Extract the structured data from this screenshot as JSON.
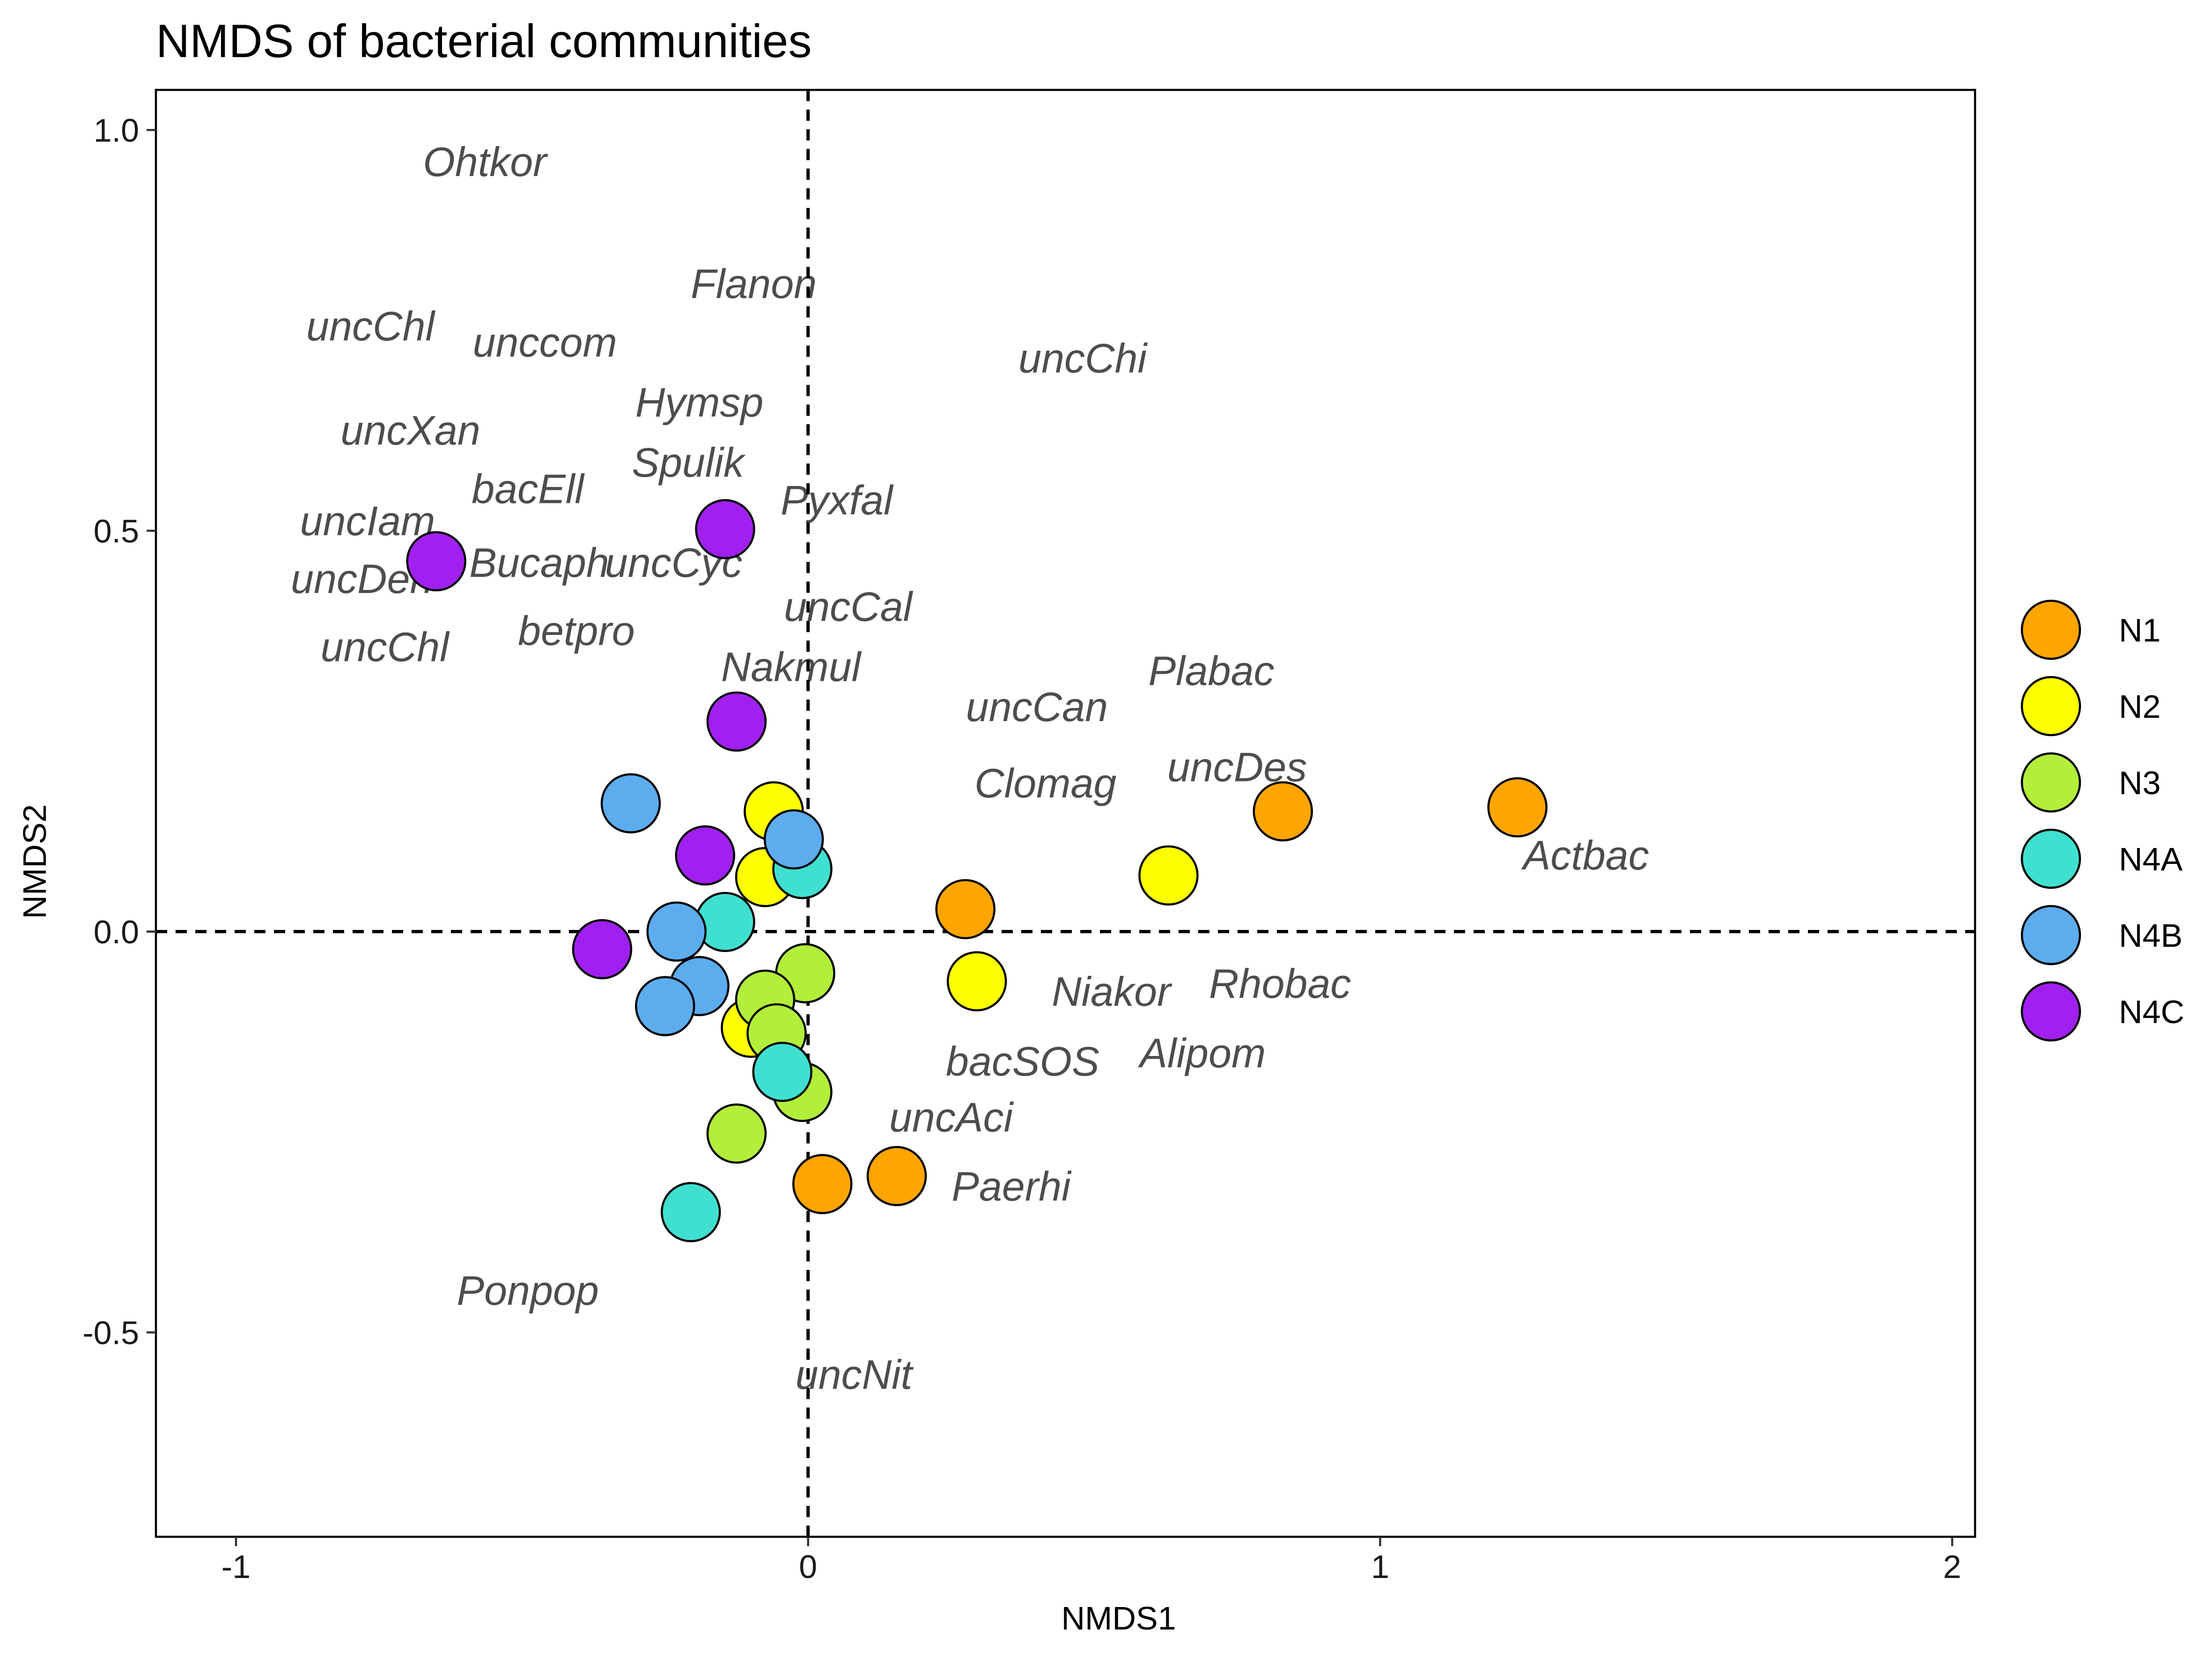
{
  "chart_data": {
    "type": "scatter",
    "title": "NMDS of bacterial communities",
    "xlabel": "NMDS1",
    "ylabel": "NMDS2",
    "xlim": [
      -1.14,
      2.04
    ],
    "ylim": [
      -0.755,
      1.05
    ],
    "xticks": [
      -1,
      0,
      1,
      2
    ],
    "xtick_labels": [
      "-1",
      "0",
      "1",
      "2"
    ],
    "yticks": [
      1.0,
      0.5,
      0.0,
      -0.5
    ],
    "ytick_labels": [
      "1.0",
      "0.5",
      "0.0",
      "-0.5"
    ],
    "grid": false,
    "reference_lines": {
      "x": 0,
      "y": 0,
      "style": "dashed"
    },
    "legend_position": "right",
    "legend": [
      {
        "name": "N1",
        "color": "#FFA500"
      },
      {
        "name": "N2",
        "color": "#FFFF00"
      },
      {
        "name": "N3",
        "color": "#B3EE3A"
      },
      {
        "name": "N4A",
        "color": "#40E0D0"
      },
      {
        "name": "N4B",
        "color": "#5CACEE"
      },
      {
        "name": "N4C",
        "color": "#A020F0"
      }
    ],
    "series": [
      {
        "name": "N1",
        "color": "#FFA500",
        "points": [
          {
            "x": 0.83,
            "y": 0.15
          },
          {
            "x": 1.24,
            "y": 0.155
          },
          {
            "x": 0.275,
            "y": 0.028
          },
          {
            "x": 0.155,
            "y": -0.305
          },
          {
            "x": 0.025,
            "y": -0.315
          }
        ]
      },
      {
        "name": "N2",
        "color": "#FFFF00",
        "points": [
          {
            "x": 0.63,
            "y": 0.07
          },
          {
            "x": 0.295,
            "y": -0.062
          },
          {
            "x": -0.06,
            "y": 0.15
          },
          {
            "x": -0.075,
            "y": 0.068
          },
          {
            "x": -0.1,
            "y": -0.12
          }
        ]
      },
      {
        "name": "N3",
        "color": "#B3EE3A",
        "points": [
          {
            "x": -0.005,
            "y": -0.052
          },
          {
            "x": -0.075,
            "y": -0.085
          },
          {
            "x": -0.055,
            "y": -0.127
          },
          {
            "x": -0.01,
            "y": -0.2
          },
          {
            "x": -0.125,
            "y": -0.252
          }
        ]
      },
      {
        "name": "N4A",
        "color": "#40E0D0",
        "points": [
          {
            "x": -0.01,
            "y": 0.078
          },
          {
            "x": -0.145,
            "y": 0.012
          },
          {
            "x": -0.045,
            "y": -0.175
          },
          {
            "x": -0.205,
            "y": -0.35
          }
        ]
      },
      {
        "name": "N4B",
        "color": "#5CACEE",
        "points": [
          {
            "x": -0.31,
            "y": 0.16
          },
          {
            "x": -0.025,
            "y": 0.115
          },
          {
            "x": -0.23,
            "y": 0.0
          },
          {
            "x": -0.19,
            "y": -0.068
          },
          {
            "x": -0.25,
            "y": -0.093
          }
        ]
      },
      {
        "name": "N4C",
        "color": "#A020F0",
        "points": [
          {
            "x": -0.65,
            "y": 0.462
          },
          {
            "x": -0.145,
            "y": 0.502
          },
          {
            "x": -0.125,
            "y": 0.262
          },
          {
            "x": -0.18,
            "y": 0.095
          },
          {
            "x": -0.36,
            "y": -0.022
          }
        ]
      }
    ],
    "labels": [
      {
        "text": "Ohtkor",
        "x": -0.565,
        "y": 0.96
      },
      {
        "text": "Flanon",
        "x": -0.095,
        "y": 0.808
      },
      {
        "text": "uncChl",
        "x": -0.765,
        "y": 0.755
      },
      {
        "text": "unccom",
        "x": -0.46,
        "y": 0.735
      },
      {
        "text": "uncChi",
        "x": 0.48,
        "y": 0.715
      },
      {
        "text": "Hymsp",
        "x": -0.19,
        "y": 0.66
      },
      {
        "text": "uncXan",
        "x": -0.695,
        "y": 0.625
      },
      {
        "text": "Spulik",
        "x": -0.21,
        "y": 0.585
      },
      {
        "text": "bacEll",
        "x": -0.49,
        "y": 0.552
      },
      {
        "text": "Pyxfal",
        "x": 0.05,
        "y": 0.538
      },
      {
        "text": "uncIam",
        "x": -0.77,
        "y": 0.512
      },
      {
        "text": "Bucaph",
        "x": -0.47,
        "y": 0.46
      },
      {
        "text": "uncCyc",
        "x": -0.235,
        "y": 0.46
      },
      {
        "text": "uncDeh",
        "x": -0.78,
        "y": 0.44
      },
      {
        "text": "uncCal",
        "x": 0.07,
        "y": 0.405
      },
      {
        "text": "uncChl",
        "x": -0.74,
        "y": 0.355
      },
      {
        "text": "betpro",
        "x": -0.405,
        "y": 0.375
      },
      {
        "text": "Nakmul",
        "x": -0.03,
        "y": 0.33
      },
      {
        "text": "Plabac",
        "x": 0.705,
        "y": 0.325
      },
      {
        "text": "uncCan",
        "x": 0.4,
        "y": 0.28
      },
      {
        "text": "uncDes",
        "x": 0.75,
        "y": 0.205
      },
      {
        "text": "Clomag",
        "x": 0.415,
        "y": 0.185
      },
      {
        "text": "Actbac",
        "x": 1.36,
        "y": 0.095
      },
      {
        "text": "Rhobac",
        "x": 0.825,
        "y": -0.065
      },
      {
        "text": "Niakor",
        "x": 0.53,
        "y": -0.075
      },
      {
        "text": "Alipom",
        "x": 0.69,
        "y": -0.152
      },
      {
        "text": "bacSOS",
        "x": 0.375,
        "y": -0.162
      },
      {
        "text": "uncAci",
        "x": 0.25,
        "y": -0.232
      },
      {
        "text": "Paerhi",
        "x": 0.355,
        "y": -0.318
      },
      {
        "text": "Ponpop",
        "x": -0.49,
        "y": -0.448
      },
      {
        "text": "uncNit",
        "x": 0.08,
        "y": -0.553
      }
    ]
  }
}
